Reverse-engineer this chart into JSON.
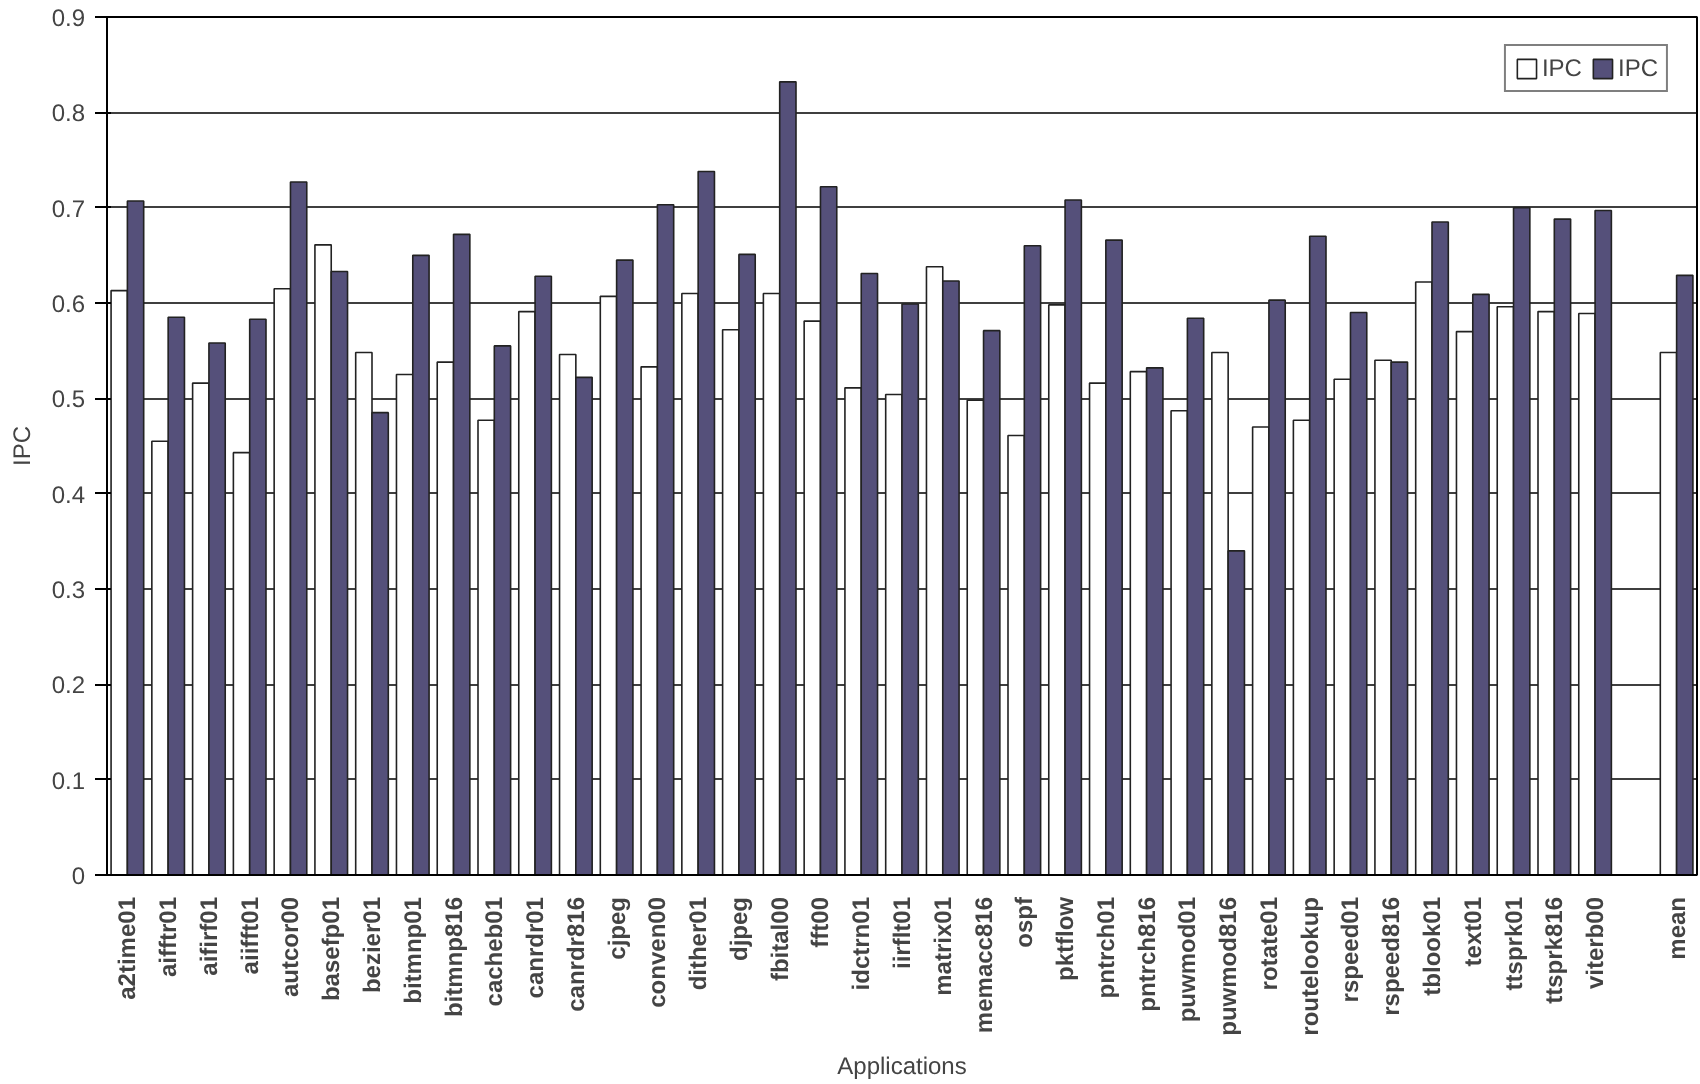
{
  "chart_data": {
    "type": "bar",
    "xlabel": "Applications",
    "ylabel": "IPC",
    "categories": [
      "a2time01",
      "aifftr01",
      "aifirf01",
      "aiifft01",
      "autcor00",
      "basefp01",
      "bezier01",
      "bitmnp01",
      "bitmnp816",
      "cacheb01",
      "canrdr01",
      "canrdr816",
      "cjpeg",
      "conven00",
      "dither01",
      "djpeg",
      "fbital00",
      "fft00",
      "idctrn01",
      "iirflt01",
      "matrix01",
      "memacc816",
      "ospf",
      "pktflow",
      "pntrch01",
      "pntrch816",
      "puwmod01",
      "puwmod816",
      "rotate01",
      "routelookup",
      "rspeed01",
      "rspeed816",
      "tblook01",
      "text01",
      "ttsprk01",
      "ttsprk816",
      "viterb00",
      null,
      "mean"
    ],
    "series": [
      {
        "name": "IPC",
        "color": "#ffffff",
        "values": [
          0.613,
          0.455,
          0.516,
          0.443,
          0.615,
          0.661,
          0.548,
          0.525,
          0.538,
          0.477,
          0.591,
          0.546,
          0.607,
          0.533,
          0.61,
          0.572,
          0.61,
          0.581,
          0.511,
          0.504,
          0.638,
          0.498,
          0.461,
          0.598,
          0.516,
          0.528,
          0.487,
          0.548,
          0.47,
          0.477,
          0.52,
          0.54,
          0.622,
          0.57,
          0.596,
          0.591,
          0.589,
          null,
          0.548
        ]
      },
      {
        "name": "IPC",
        "color": "#55507a",
        "values": [
          0.707,
          0.585,
          0.558,
          0.583,
          0.727,
          0.633,
          0.485,
          0.65,
          0.672,
          0.555,
          0.628,
          0.522,
          0.645,
          0.703,
          0.738,
          0.651,
          0.832,
          0.722,
          0.631,
          0.599,
          0.623,
          0.571,
          0.66,
          0.708,
          0.666,
          0.532,
          0.584,
          0.34,
          0.603,
          0.67,
          0.59,
          0.538,
          0.685,
          0.609,
          0.7,
          0.688,
          0.697,
          null,
          0.629
        ]
      }
    ],
    "ylim": [
      0,
      0.9
    ],
    "yticks": [
      0,
      0.1,
      0.2,
      0.3,
      0.4,
      0.5,
      0.6,
      0.7,
      0.8,
      0.9
    ],
    "grid": "y",
    "legend": "top right"
  }
}
